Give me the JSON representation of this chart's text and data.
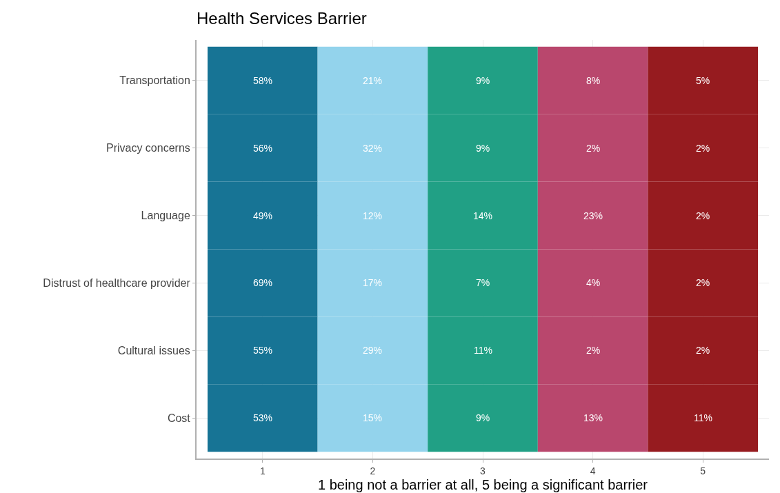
{
  "chart_data": {
    "type": "heatmap",
    "title": "Health Services Barrier",
    "xlabel": "1 being not a barrier at all, 5 being a significant barrier",
    "categories": [
      "1",
      "2",
      "3",
      "4",
      "5"
    ],
    "y_categories": [
      "Transportation",
      "Privacy concerns",
      "Language",
      "Distrust of healthcare provider",
      "Cultural issues",
      "Cost"
    ],
    "colors": [
      "#177495",
      "#93d3ec",
      "#21a085",
      "#b9476d",
      "#961b1f"
    ],
    "cells": [
      [
        58,
        21,
        9,
        8,
        5
      ],
      [
        56,
        32,
        9,
        2,
        2
      ],
      [
        49,
        12,
        14,
        23,
        2
      ],
      [
        69,
        17,
        7,
        4,
        2
      ],
      [
        55,
        29,
        11,
        2,
        2
      ],
      [
        53,
        15,
        9,
        13,
        11
      ]
    ],
    "cell_labels": [
      [
        "58%",
        "21%",
        "9%",
        "8%",
        "5%"
      ],
      [
        "56%",
        "32%",
        "9%",
        "2%",
        "2%"
      ],
      [
        "49%",
        "12%",
        "14%",
        "23%",
        "2%"
      ],
      [
        "69%",
        "17%",
        "7%",
        "4%",
        "2%"
      ],
      [
        "55%",
        "29%",
        "11%",
        "2%",
        "2%"
      ],
      [
        "53%",
        "15%",
        "9%",
        "13%",
        "11%"
      ]
    ],
    "grid": true
  }
}
